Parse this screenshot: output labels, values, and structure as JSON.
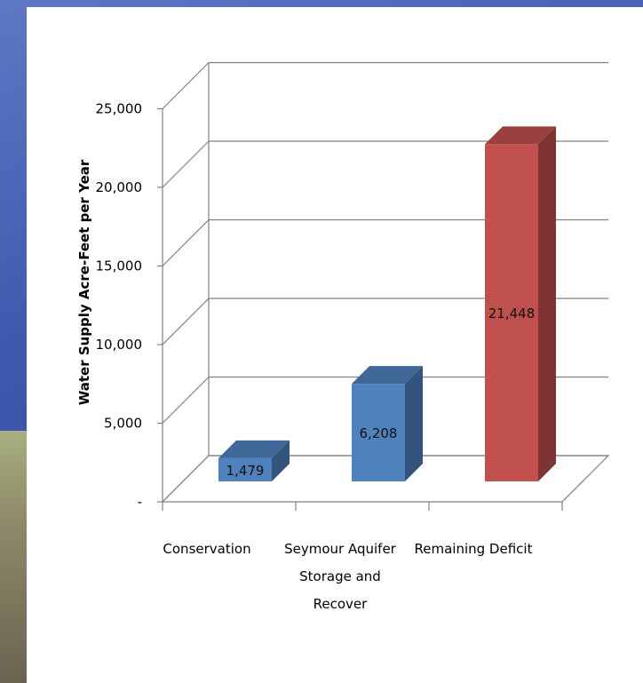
{
  "chart_data": {
    "type": "bar",
    "title": "",
    "xlabel": "",
    "ylabel": "Water Supply Acre-Feet per Year",
    "ylim": [
      0,
      25000
    ],
    "yticks": [
      "-",
      "5,000",
      "10,000",
      "15,000",
      "20,000",
      "25,000"
    ],
    "categories": [
      [
        "Conservation"
      ],
      [
        "Seymour Aquifer",
        "Storage and",
        "Recover"
      ],
      [
        "Remaining Deficit"
      ]
    ],
    "values": [
      1479,
      6208,
      21448
    ],
    "data_labels": [
      "1,479",
      "6,208",
      "21,448"
    ],
    "colors": [
      "#4f81bd",
      "#4f81bd",
      "#c0504d"
    ],
    "grid": true,
    "legend": "none",
    "style": "3d-column"
  }
}
